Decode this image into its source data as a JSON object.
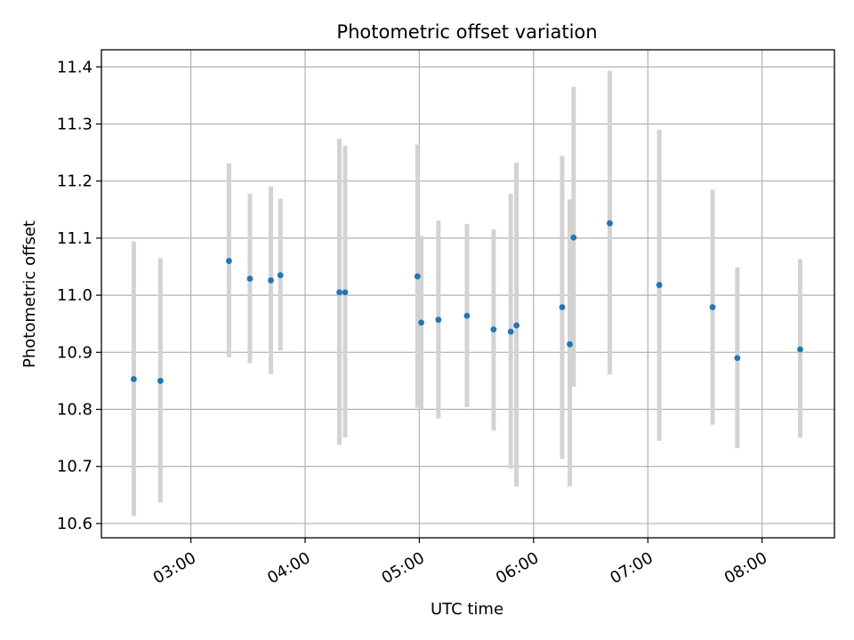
{
  "chart_data": {
    "type": "scatter",
    "title": "Photometric offset variation",
    "xlabel": "UTC time",
    "ylabel": "Photometric offset",
    "x_ticks": [
      "03:00",
      "04:00",
      "05:00",
      "06:00",
      "07:00",
      "08:00"
    ],
    "y_ticks": [
      "10.6",
      "10.7",
      "10.8",
      "10.9",
      "11.0",
      "11.1",
      "11.2",
      "11.3",
      "11.4"
    ],
    "ylim": [
      10.575,
      11.43
    ],
    "xlim": [
      "02:13",
      "08:38"
    ],
    "grid": true,
    "point_color": "#1f77b4",
    "errorbar_color": "#d3d3d3",
    "points": [
      {
        "x": "02:30",
        "y": 10.853,
        "lo": 10.613,
        "hi": 11.094
      },
      {
        "x": "02:44",
        "y": 10.85,
        "lo": 10.637,
        "hi": 11.065
      },
      {
        "x": "03:20",
        "y": 11.06,
        "lo": 10.891,
        "hi": 11.231
      },
      {
        "x": "03:31",
        "y": 11.029,
        "lo": 10.881,
        "hi": 11.178
      },
      {
        "x": "03:42",
        "y": 11.026,
        "lo": 10.862,
        "hi": 11.191
      },
      {
        "x": "03:47",
        "y": 11.035,
        "lo": 10.903,
        "hi": 11.169
      },
      {
        "x": "04:18",
        "y": 11.005,
        "lo": 10.738,
        "hi": 11.274
      },
      {
        "x": "04:21",
        "y": 11.005,
        "lo": 10.751,
        "hi": 11.262
      },
      {
        "x": "04:59",
        "y": 11.033,
        "lo": 10.803,
        "hi": 11.264
      },
      {
        "x": "05:01",
        "y": 10.952,
        "lo": 10.8,
        "hi": 11.104
      },
      {
        "x": "05:10",
        "y": 10.957,
        "lo": 10.784,
        "hi": 11.131
      },
      {
        "x": "05:25",
        "y": 10.964,
        "lo": 10.804,
        "hi": 11.125
      },
      {
        "x": "05:39",
        "y": 10.94,
        "lo": 10.763,
        "hi": 11.115
      },
      {
        "x": "05:48",
        "y": 10.936,
        "lo": 10.696,
        "hi": 11.178
      },
      {
        "x": "05:51",
        "y": 10.947,
        "lo": 10.665,
        "hi": 11.232
      },
      {
        "x": "06:15",
        "y": 10.979,
        "lo": 10.713,
        "hi": 11.244
      },
      {
        "x": "06:19",
        "y": 10.914,
        "lo": 10.665,
        "hi": 11.168
      },
      {
        "x": "06:21",
        "y": 11.101,
        "lo": 10.84,
        "hi": 11.365
      },
      {
        "x": "06:40",
        "y": 11.126,
        "lo": 10.861,
        "hi": 11.393
      },
      {
        "x": "07:06",
        "y": 11.018,
        "lo": 10.745,
        "hi": 11.29
      },
      {
        "x": "07:34",
        "y": 10.979,
        "lo": 10.773,
        "hi": 11.185
      },
      {
        "x": "07:47",
        "y": 10.89,
        "lo": 10.732,
        "hi": 11.049
      },
      {
        "x": "08:20",
        "y": 10.905,
        "lo": 10.75,
        "hi": 11.063
      }
    ]
  }
}
